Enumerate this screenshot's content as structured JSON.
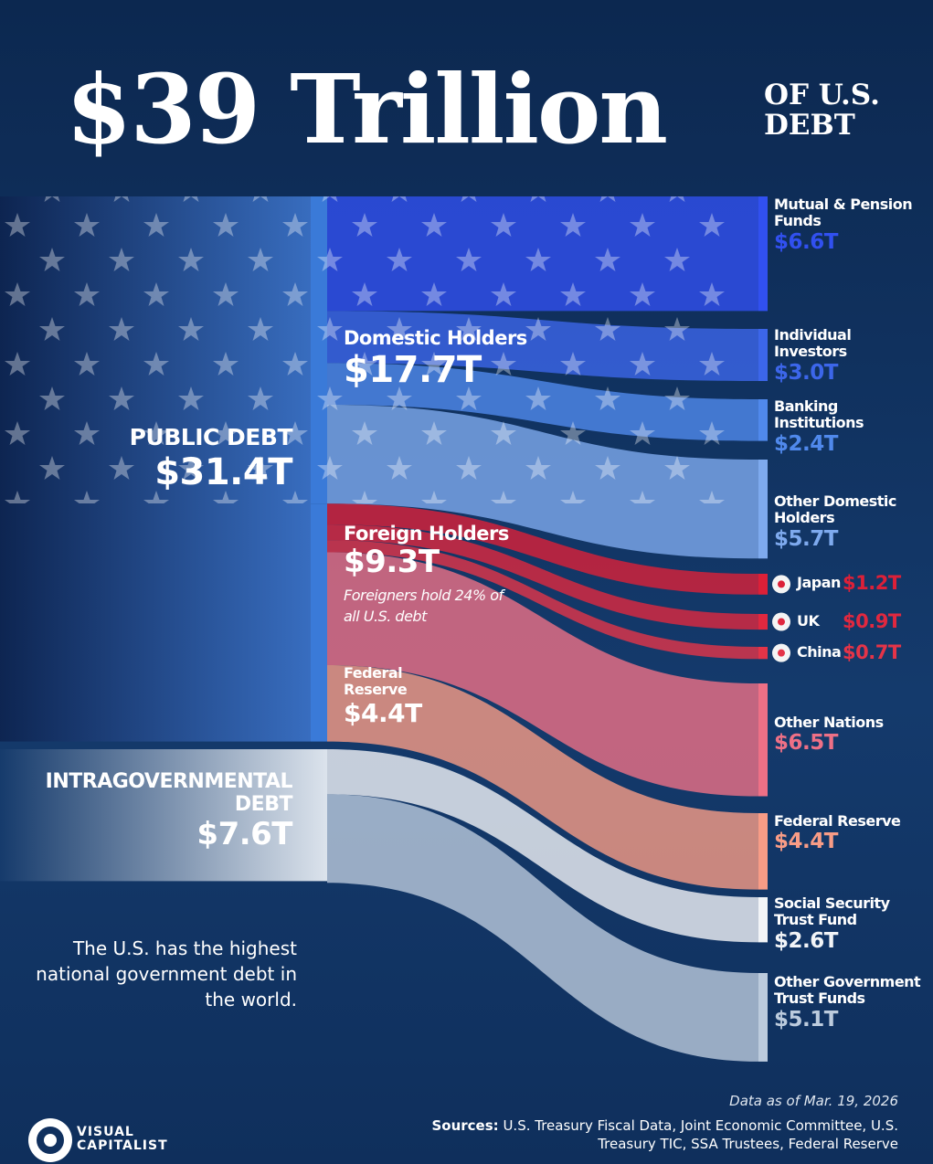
{
  "chart_data": {
    "type": "sankey",
    "title": "$39 Trillion",
    "subtitle": "OF U.S. DEBT",
    "nodes": [
      {
        "name": "PUBLIC DEBT",
        "value": 31.4,
        "value_label": "$31.4T",
        "color": "#2f63b8",
        "children": [
          {
            "name": "Domestic Holders",
            "value": 17.7,
            "value_label": "$17.7T",
            "color": "#1d2f9e",
            "children": [
              {
                "name": "Mutual & Pension Funds",
                "value": 6.6,
                "value_label": "$6.6T",
                "color": "#3150f0"
              },
              {
                "name": "Individual Investors",
                "value": 3.0,
                "value_label": "$3.0T",
                "color": "#3c66ea"
              },
              {
                "name": "Banking Institutions",
                "value": 2.4,
                "value_label": "$2.4T",
                "color": "#5089ec"
              },
              {
                "name": "Other Domestic Holders",
                "value": 5.7,
                "value_label": "$5.7T",
                "color": "#7eaaee"
              }
            ]
          },
          {
            "name": "Foreign Holders",
            "value": 9.3,
            "value_label": "$9.3T",
            "note": "Foreigners hold 24% of all U.S. debt",
            "color": "#d8283f",
            "children": [
              {
                "name": "Japan",
                "value": 1.2,
                "value_label": "$1.2T",
                "color": "#dc2038"
              },
              {
                "name": "UK",
                "value": 0.9,
                "value_label": "$0.9T",
                "color": "#e0283f"
              },
              {
                "name": "China",
                "value": 0.7,
                "value_label": "$0.7T",
                "color": "#e43448"
              },
              {
                "name": "Other Nations",
                "value": 6.5,
                "value_label": "$6.5T",
                "color": "#ee7086"
              }
            ]
          },
          {
            "name": "Federal Reserve",
            "value": 4.4,
            "value_label": "$4.4T",
            "color": "#f4806e",
            "children": [
              {
                "name": "Federal Reserve",
                "value": 4.4,
                "value_label": "$4.4T",
                "color": "#f89c86"
              }
            ]
          }
        ]
      },
      {
        "name": "INTRAGOVERNMENTAL DEBT",
        "value": 7.6,
        "value_label": "$7.6T",
        "color": "#dfe6ef",
        "children": [
          {
            "name": "Social Security Trust Fund",
            "value": 2.6,
            "value_label": "$2.6T",
            "color": "#f2f4f7"
          },
          {
            "name": "Other Government Trust Funds",
            "value": 5.1,
            "value_label": "$5.1T",
            "color": "#bccbdd"
          }
        ]
      }
    ],
    "left_note": "The U.S. has the highest national government debt in the world.",
    "data_note": "Data as of Mar. 19, 2026",
    "sources_label": "Sources:",
    "sources": "U.S. Treasury Fiscal Data, Joint Economic Committee, U.S. Treasury TIC, SSA Trustees, Federal Reserve",
    "brand": "VISUAL CAPITALIST"
  }
}
